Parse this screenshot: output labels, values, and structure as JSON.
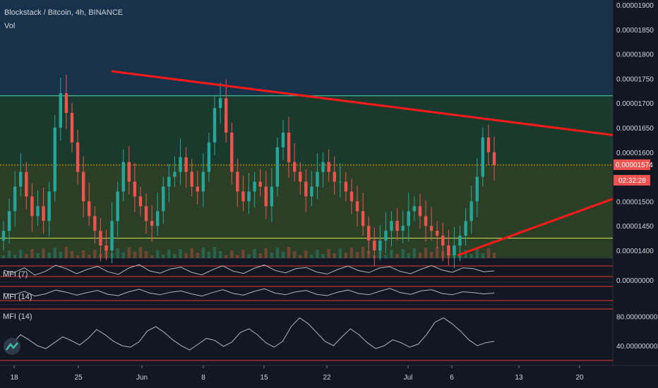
{
  "header": {
    "symbol_title": "Blockstack / Bitcoin, 4h, BINANCE",
    "volume_label": "Vol"
  },
  "price_scale": {
    "current_price": "0.00001574",
    "countdown": "02:32:28",
    "partial_label": "0."
  },
  "colors": {
    "background": "#131722",
    "upper_zone": "#17324a",
    "middle_zone": "#1b3a2e",
    "lower_zone": "#2b3f26",
    "bull": "#26a69a",
    "bear": "#ef5350",
    "trendline": "#ff1a1a",
    "resistance_line": "#4dd0c0",
    "support_line": "#d4e157",
    "price_line": "#f7a600",
    "oscillator": "#b2b5be",
    "oscillator_band": "#e53935"
  },
  "chart_data": [
    {
      "type": "candlestick",
      "title": "Blockstack / Bitcoin, 4h, BINANCE",
      "x_ticks": [
        "18",
        "25",
        "Jun",
        "8",
        "15",
        "22",
        "Jul",
        "6",
        "13",
        "20"
      ],
      "y_ticks": [
        "0.00001900",
        "0.00001850",
        "0.00001800",
        "0.00001750",
        "0.00001700",
        "0.00001650",
        "0.00001600",
        "0.00001500",
        "0.00001450",
        "0.00001400"
      ],
      "ylim": [
        1.385e-05,
        1.91e-05
      ],
      "candle_closes": [
        1.44e-05,
        1.48e-05,
        1.53e-05,
        1.56e-05,
        1.51e-05,
        1.47e-05,
        1.49e-05,
        1.46e-05,
        1.52e-05,
        1.65e-05,
        1.72e-05,
        1.68e-05,
        1.62e-05,
        1.56e-05,
        1.5e-05,
        1.47e-05,
        1.44e-05,
        1.41e-05,
        1.4e-05,
        1.46e-05,
        1.52e-05,
        1.58e-05,
        1.54e-05,
        1.51e-05,
        1.49e-05,
        1.46e-05,
        1.45e-05,
        1.48e-05,
        1.53e-05,
        1.55e-05,
        1.56e-05,
        1.59e-05,
        1.56e-05,
        1.53e-05,
        1.52e-05,
        1.56e-05,
        1.62e-05,
        1.69e-05,
        1.71e-05,
        1.64e-05,
        1.56e-05,
        1.52e-05,
        1.5e-05,
        1.52e-05,
        1.54e-05,
        1.53e-05,
        1.49e-05,
        1.53e-05,
        1.61e-05,
        1.64e-05,
        1.58e-05,
        1.56e-05,
        1.54e-05,
        1.51e-05,
        1.53e-05,
        1.56e-05,
        1.58e-05,
        1.56e-05,
        1.54e-05,
        1.54e-05,
        1.52e-05,
        1.5e-05,
        1.48e-05,
        1.45e-05,
        1.42e-05,
        1.4e-05,
        1.42e-05,
        1.44e-05,
        1.46e-05,
        1.44e-05,
        1.45e-05,
        1.48e-05,
        1.49e-05,
        1.47e-05,
        1.45e-05,
        1.44e-05,
        1.43e-05,
        1.41e-05,
        1.39e-05,
        1.41e-05,
        1.43e-05,
        1.46e-05,
        1.5e-05,
        1.55e-05,
        1.63e-05,
        1.6e-05,
        1.574e-05
      ],
      "trendlines": [
        {
          "from": 1.765e-05,
          "to": 1.635e-05,
          "span": "28 May to chart edge"
        },
        {
          "from": 1.39e-05,
          "to": 1.505e-05,
          "span": "6 Jul to chart edge"
        }
      ],
      "horizontal_levels": [
        {
          "value": 1.715e-05,
          "role": "resistance"
        },
        {
          "value": 1.574e-05,
          "role": "current price"
        },
        {
          "value": 1.425e-05,
          "role": "support"
        }
      ]
    },
    {
      "type": "line",
      "title": "MFI (7)",
      "values": [
        52,
        44,
        61,
        35,
        48,
        70,
        58,
        40,
        55,
        66,
        47,
        38,
        60,
        72,
        50,
        42,
        57,
        63,
        45,
        36,
        54,
        68,
        49,
        41,
        59,
        71,
        52,
        43,
        58,
        62,
        46,
        39,
        55,
        67,
        51,
        44,
        60,
        65,
        48,
        40,
        56,
        69,
        53,
        45,
        61,
        58,
        47,
        50
      ]
    },
    {
      "type": "line",
      "title": "MFI (14)",
      "values": [
        50,
        47,
        55,
        44,
        49,
        58,
        53,
        46,
        52,
        57,
        48,
        45,
        54,
        60,
        51,
        47,
        53,
        56,
        49,
        44,
        52,
        59,
        50,
        46,
        55,
        61,
        51,
        47,
        54,
        57,
        48,
        45,
        53,
        58,
        50,
        47,
        55,
        62,
        52,
        48,
        56,
        59,
        50,
        47,
        54,
        52,
        49,
        51
      ]
    },
    {
      "type": "line",
      "title": "MFI (14)",
      "y_ticks": [
        "80.00000000",
        "40.00000000"
      ],
      "ylim": [
        15,
        90
      ],
      "values": [
        38,
        42,
        55,
        48,
        40,
        36,
        44,
        52,
        47,
        41,
        50,
        62,
        55,
        46,
        40,
        38,
        45,
        60,
        66,
        58,
        48,
        40,
        34,
        42,
        50,
        47,
        39,
        45,
        58,
        63,
        55,
        44,
        38,
        46,
        66,
        78,
        70,
        58,
        46,
        40,
        52,
        63,
        55,
        44,
        36,
        40,
        48,
        44,
        38,
        42,
        55,
        72,
        78,
        70,
        60,
        48,
        40,
        44,
        46
      ]
    }
  ]
}
